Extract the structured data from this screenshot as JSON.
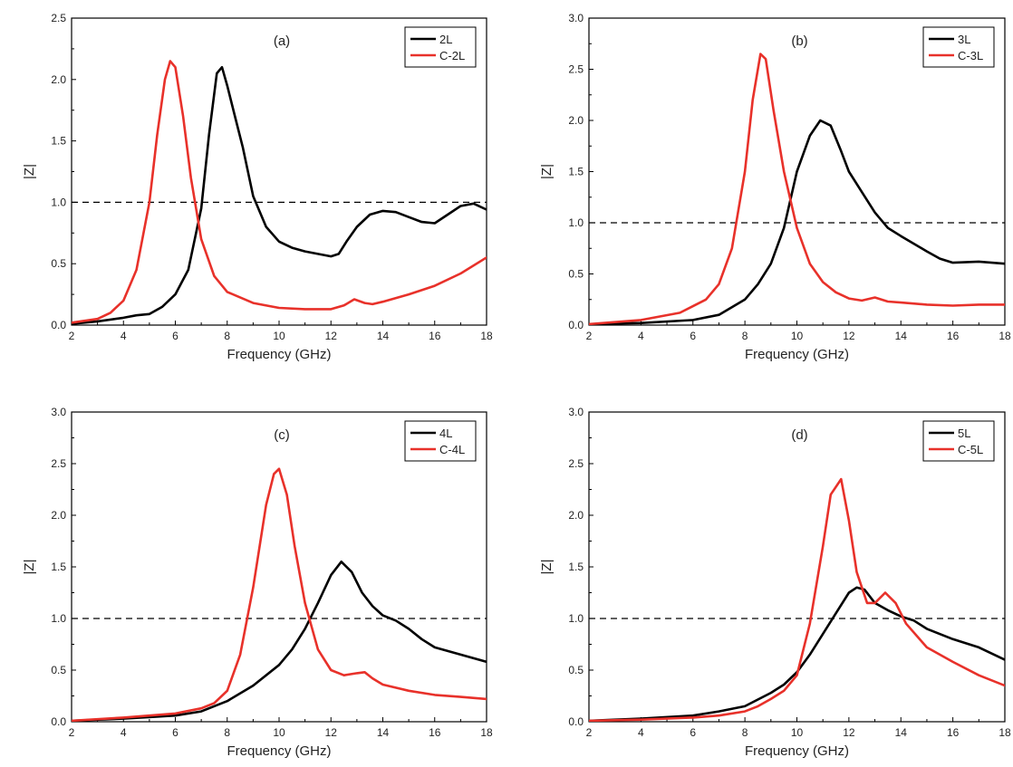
{
  "chart_data": [
    {
      "type": "line",
      "panel_label": "(a)",
      "xlabel": "Frequency (GHz)",
      "ylabel": "|Z|",
      "xlim": [
        2,
        18
      ],
      "ylim": [
        0,
        2.5
      ],
      "xticks": [
        "2",
        "4",
        "6",
        "8",
        "10",
        "12",
        "14",
        "16",
        "18"
      ],
      "yticks": [
        "0.0",
        "0.5",
        "1.0",
        "1.5",
        "2.0",
        "2.5"
      ],
      "reference_line": 1.0,
      "legend_position": "top-right",
      "series": [
        {
          "name": "2L",
          "color": "#000000",
          "x": [
            2,
            3,
            4,
            4.5,
            5,
            5.5,
            6,
            6.5,
            7,
            7.3,
            7.6,
            7.8,
            8,
            8.3,
            8.6,
            9,
            9.5,
            10,
            10.5,
            11,
            11.5,
            12,
            12.3,
            12.6,
            13,
            13.5,
            14,
            14.5,
            15,
            15.5,
            16,
            16.5,
            17,
            17.5,
            18
          ],
          "y": [
            0.01,
            0.03,
            0.06,
            0.08,
            0.09,
            0.15,
            0.25,
            0.45,
            0.95,
            1.55,
            2.05,
            2.1,
            1.95,
            1.7,
            1.45,
            1.05,
            0.8,
            0.68,
            0.63,
            0.6,
            0.58,
            0.56,
            0.58,
            0.68,
            0.8,
            0.9,
            0.93,
            0.92,
            0.88,
            0.84,
            0.83,
            0.9,
            0.97,
            0.99,
            0.94
          ]
        },
        {
          "name": "C-2L",
          "color": "#e8312a",
          "x": [
            2,
            3,
            3.5,
            4,
            4.5,
            5,
            5.3,
            5.6,
            5.8,
            6,
            6.3,
            6.6,
            7,
            7.5,
            8,
            9,
            10,
            11,
            12,
            12.5,
            12.9,
            13.3,
            13.6,
            14,
            15,
            16,
            17,
            18
          ],
          "y": [
            0.02,
            0.05,
            0.1,
            0.2,
            0.45,
            1.0,
            1.55,
            2.0,
            2.15,
            2.1,
            1.7,
            1.2,
            0.7,
            0.4,
            0.27,
            0.18,
            0.14,
            0.13,
            0.13,
            0.16,
            0.21,
            0.18,
            0.17,
            0.19,
            0.25,
            0.32,
            0.42,
            0.55
          ]
        }
      ]
    },
    {
      "type": "line",
      "panel_label": "(b)",
      "xlabel": "Frequency (GHz)",
      "ylabel": "|Z|",
      "xlim": [
        2,
        18
      ],
      "ylim": [
        0,
        3.0
      ],
      "xticks": [
        "2",
        "4",
        "6",
        "8",
        "10",
        "12",
        "14",
        "16",
        "18"
      ],
      "yticks": [
        "0.0",
        "0.5",
        "1.0",
        "1.5",
        "2.0",
        "2.5",
        "3.0"
      ],
      "reference_line": 1.0,
      "legend_position": "top-right",
      "series": [
        {
          "name": "3L",
          "color": "#000000",
          "x": [
            2,
            4,
            6,
            7,
            8,
            8.5,
            9,
            9.5,
            10,
            10.5,
            10.9,
            11.3,
            11.7,
            12,
            12.5,
            13,
            13.5,
            14,
            15,
            15.5,
            16,
            17,
            18
          ],
          "y": [
            0.01,
            0.02,
            0.05,
            0.1,
            0.25,
            0.4,
            0.6,
            0.95,
            1.5,
            1.85,
            2.0,
            1.95,
            1.7,
            1.5,
            1.3,
            1.1,
            0.95,
            0.87,
            0.72,
            0.65,
            0.61,
            0.62,
            0.6
          ]
        },
        {
          "name": "C-3L",
          "color": "#e8312a",
          "x": [
            2,
            4,
            5.5,
            6.5,
            7,
            7.5,
            8,
            8.3,
            8.6,
            8.8,
            9.1,
            9.5,
            10,
            10.5,
            11,
            11.5,
            12,
            12.5,
            13,
            13.5,
            14,
            15,
            16,
            17,
            18
          ],
          "y": [
            0.01,
            0.05,
            0.12,
            0.25,
            0.4,
            0.75,
            1.5,
            2.2,
            2.65,
            2.6,
            2.1,
            1.5,
            0.95,
            0.6,
            0.42,
            0.32,
            0.26,
            0.24,
            0.27,
            0.23,
            0.22,
            0.2,
            0.19,
            0.2,
            0.2
          ]
        }
      ]
    },
    {
      "type": "line",
      "panel_label": "(c)",
      "xlabel": "Frequency (GHz)",
      "ylabel": "|Z|",
      "xlim": [
        2,
        18
      ],
      "ylim": [
        0,
        3.0
      ],
      "xticks": [
        "2",
        "4",
        "6",
        "8",
        "10",
        "12",
        "14",
        "16",
        "18"
      ],
      "yticks": [
        "0.0",
        "0.5",
        "1.0",
        "1.5",
        "2.0",
        "2.5",
        "3.0"
      ],
      "reference_line": 1.0,
      "legend_position": "top-right",
      "series": [
        {
          "name": "4L",
          "color": "#000000",
          "x": [
            2,
            4,
            6,
            7,
            8,
            9,
            10,
            10.5,
            11,
            11.5,
            12,
            12.4,
            12.8,
            13.2,
            13.6,
            14,
            14.5,
            15,
            15.5,
            16,
            17,
            18
          ],
          "y": [
            0.01,
            0.03,
            0.06,
            0.1,
            0.2,
            0.35,
            0.55,
            0.7,
            0.9,
            1.15,
            1.42,
            1.55,
            1.45,
            1.25,
            1.12,
            1.03,
            0.98,
            0.9,
            0.8,
            0.72,
            0.65,
            0.58
          ]
        },
        {
          "name": "C-4L",
          "color": "#e8312a",
          "x": [
            2,
            4,
            6,
            7,
            7.5,
            8,
            8.5,
            9,
            9.5,
            9.8,
            10,
            10.3,
            10.6,
            11,
            11.5,
            12,
            12.5,
            13,
            13.3,
            13.6,
            14,
            15,
            16,
            17,
            18
          ],
          "y": [
            0.01,
            0.04,
            0.08,
            0.13,
            0.18,
            0.3,
            0.65,
            1.3,
            2.1,
            2.4,
            2.45,
            2.2,
            1.7,
            1.15,
            0.7,
            0.5,
            0.45,
            0.47,
            0.48,
            0.42,
            0.36,
            0.3,
            0.26,
            0.24,
            0.22
          ]
        }
      ]
    },
    {
      "type": "line",
      "panel_label": "(d)",
      "xlabel": "Frequency (GHz)",
      "ylabel": "|Z|",
      "xlim": [
        2,
        18
      ],
      "ylim": [
        0,
        3.0
      ],
      "xticks": [
        "2",
        "4",
        "6",
        "8",
        "10",
        "12",
        "14",
        "16",
        "18"
      ],
      "yticks": [
        "0.0",
        "0.5",
        "1.0",
        "1.5",
        "2.0",
        "2.5",
        "3.0"
      ],
      "reference_line": 1.0,
      "legend_position": "top-right",
      "series": [
        {
          "name": "5L",
          "color": "#000000",
          "x": [
            2,
            4,
            6,
            7,
            8,
            9,
            9.5,
            10,
            10.5,
            11,
            11.5,
            12,
            12.3,
            12.6,
            13,
            13.5,
            14,
            14.5,
            15,
            16,
            17,
            18
          ],
          "y": [
            0.01,
            0.03,
            0.06,
            0.1,
            0.15,
            0.28,
            0.36,
            0.48,
            0.65,
            0.85,
            1.05,
            1.25,
            1.3,
            1.28,
            1.15,
            1.08,
            1.02,
            0.98,
            0.9,
            0.8,
            0.72,
            0.6
          ]
        },
        {
          "name": "C-5L",
          "color": "#e8312a",
          "x": [
            2,
            4,
            6,
            7,
            8,
            8.5,
            9,
            9.5,
            10,
            10.5,
            11,
            11.3,
            11.7,
            12,
            12.3,
            12.7,
            13,
            13.4,
            13.8,
            14.2,
            15,
            16,
            17,
            18
          ],
          "y": [
            0.01,
            0.02,
            0.04,
            0.06,
            0.1,
            0.15,
            0.22,
            0.3,
            0.45,
            0.95,
            1.7,
            2.2,
            2.35,
            1.95,
            1.45,
            1.15,
            1.15,
            1.25,
            1.15,
            0.95,
            0.72,
            0.58,
            0.45,
            0.35
          ]
        }
      ]
    }
  ]
}
